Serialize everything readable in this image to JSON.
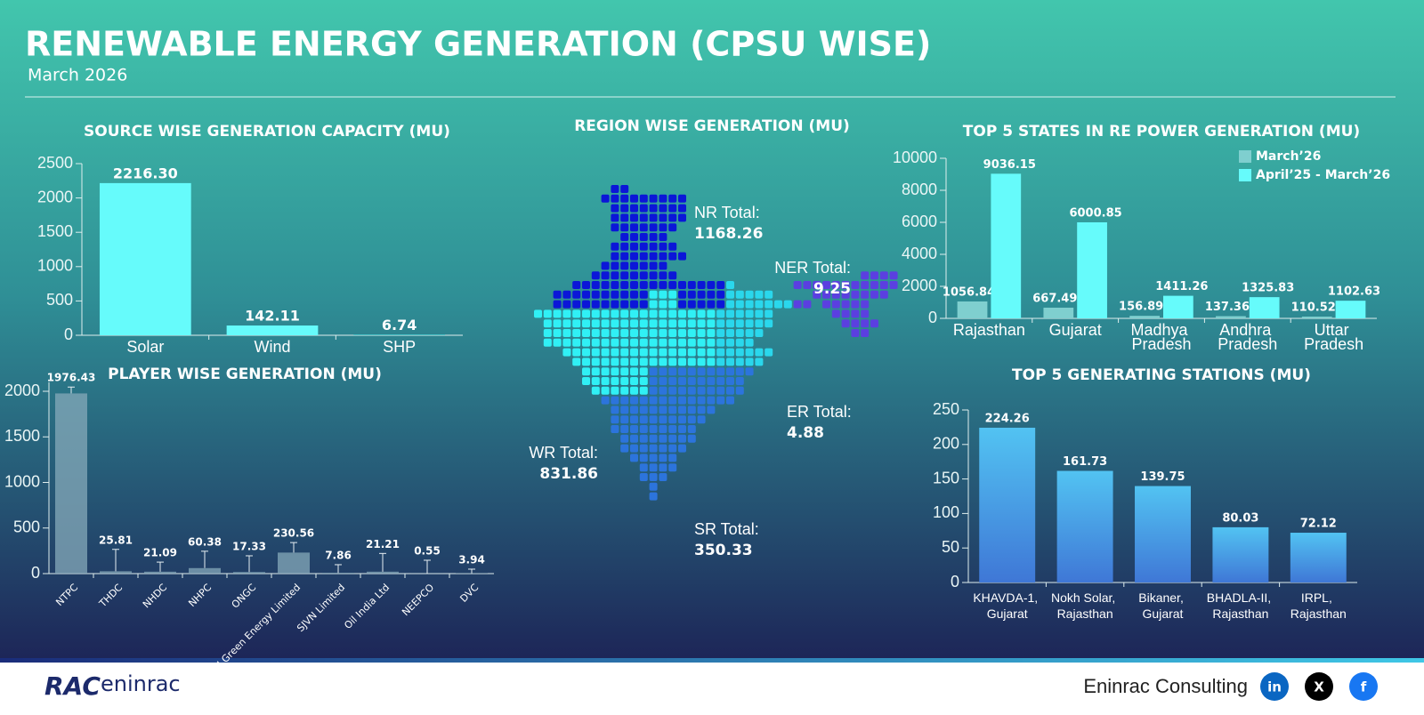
{
  "header": {
    "title": "RENEWABLE ENERGY GENERATION (CPSU WISE)",
    "subtitle": "March 2026"
  },
  "chart_data": [
    {
      "type": "bar",
      "title": "SOURCE WISE GENERATION CAPACITY (MU)",
      "categories": [
        "Solar",
        "Wind",
        "SHP"
      ],
      "values": [
        2216.3,
        142.11,
        6.74
      ],
      "value_labels": [
        "2216.30",
        "142.11",
        "6.74"
      ],
      "color": "#66fbfb",
      "ylim": [
        0,
        2500
      ],
      "yticks": [
        0,
        500,
        1000,
        1500,
        2000,
        2500
      ]
    },
    {
      "type": "bar",
      "title": "PLAYER WISE GENERATION (MU)",
      "categories": [
        "NTPC",
        "THDC",
        "NHDC",
        "NHPC",
        "ONGC",
        "SJVN Green Energy Limited",
        "SJVN Limited",
        "Oil India Ltd",
        "NEEPCO",
        "DVC"
      ],
      "values": [
        1976.43,
        25.81,
        21.09,
        60.38,
        17.33,
        230.56,
        7.86,
        21.21,
        0.55,
        3.94
      ],
      "errors": [
        70,
        240,
        105,
        185,
        178,
        110,
        90,
        200,
        146,
        45
      ],
      "color": "#86a9b9",
      "ylim": [
        0,
        2100
      ],
      "yticks": [
        0,
        500,
        1000,
        1500,
        2000
      ]
    },
    {
      "type": "grouped-bar",
      "title": "TOP 5 STATES IN RE POWER GENERATION (MU)",
      "categories": [
        "Rajasthan",
        "Gujarat",
        "Madhya Pradesh",
        "Andhra Pradesh",
        "Uttar Pradesh"
      ],
      "series": [
        {
          "name": "March’26",
          "color": "#7fcfcf",
          "values": [
            1056.84,
            667.49,
            156.89,
            137.36,
            110.52
          ]
        },
        {
          "name": "April’25 - March’26",
          "color": "#66fbfb",
          "values": [
            9036.15,
            6000.85,
            1411.26,
            1325.83,
            1102.63
          ]
        }
      ],
      "ylim": [
        0,
        10000
      ],
      "yticks": [
        0,
        2000,
        4000,
        6000,
        8000,
        10000
      ],
      "legend": "top-right"
    },
    {
      "type": "bar",
      "title": "TOP 5 GENERATING STATIONS (MU)",
      "categories": [
        "KHAVDA-1, Gujarat",
        "Nokh Solar, Rajasthan",
        "Bikaner, Gujarat",
        "BHADLA-II, Rajasthan",
        "IRPL, Rajasthan"
      ],
      "values": [
        224.26,
        161.73,
        139.75,
        80.03,
        72.12
      ],
      "color": "#4fb6ef",
      "ylim": [
        0,
        250
      ],
      "yticks": [
        0,
        50,
        100,
        150,
        200,
        250
      ]
    }
  ],
  "region_map": {
    "title": "REGION WISE GENERATION (MU)",
    "regions": [
      {
        "label": "NR Total:",
        "value": 1168.26
      },
      {
        "label": "NER Total:",
        "value": 9.25
      },
      {
        "label": "ER Total:",
        "value": 4.88
      },
      {
        "label": "WR Total:",
        "value": 831.86
      },
      {
        "label": "SR Total:",
        "value": 350.33
      }
    ]
  },
  "footer": {
    "logo_mark": "RAC",
    "logo_text": "eninrac",
    "company": "Eninrac Consulting",
    "social": [
      "in",
      "X",
      "f"
    ]
  }
}
